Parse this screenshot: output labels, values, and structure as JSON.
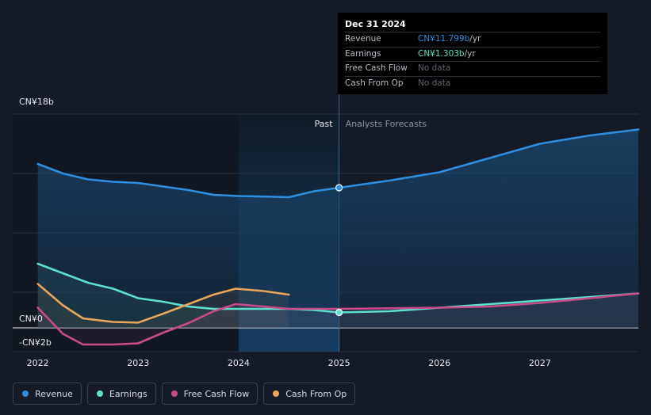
{
  "colors": {
    "revenue": "#2e8fe0",
    "earnings": "#5cdfcb",
    "free_cash_flow": "#c84c87",
    "cash_from_op": "#e8a65d",
    "background": "#141b27",
    "grid": "#2b3341"
  },
  "tooltip": {
    "date": "Dec 31 2024",
    "rows": [
      {
        "label": "Revenue",
        "value": "CN¥11.799b",
        "unit": " /yr",
        "color": "#2e8fe0"
      },
      {
        "label": "Earnings",
        "value": "CN¥1.303b",
        "unit": " /yr",
        "color": "#5cdfcb"
      },
      {
        "label": "Free Cash Flow",
        "value": "No data",
        "unit": "",
        "color": "#5e646e"
      },
      {
        "label": "Cash From Op",
        "value": "No data",
        "unit": "",
        "color": "#5e646e"
      }
    ]
  },
  "legend": [
    {
      "label": "Revenue",
      "color": "#2e8fe0"
    },
    {
      "label": "Earnings",
      "color": "#5cdfcb"
    },
    {
      "label": "Free Cash Flow",
      "color": "#c84c87"
    },
    {
      "label": "Cash From Op",
      "color": "#e8a65d"
    }
  ],
  "chart_data": {
    "type": "line",
    "title": "",
    "xlabel": "",
    "ylabel": "",
    "x_ticks": [
      "2022",
      "2023",
      "2024",
      "2025",
      "2026",
      "2027"
    ],
    "y_tick_labels": [
      "CN¥18b",
      "CN¥0",
      "-CN¥2b"
    ],
    "xlim": [
      2021.75,
      2027.98
    ],
    "ylim": [
      -2,
      18
    ],
    "past_label": "Past",
    "forecast_label": "Analysts Forecasts",
    "divider_x": 2025.0,
    "highlight_range": [
      2024.0,
      2025.0
    ],
    "series": [
      {
        "name": "Revenue",
        "key": "revenue",
        "x": [
          2022.0,
          2022.25,
          2022.5,
          2022.75,
          2023.0,
          2023.25,
          2023.5,
          2023.75,
          2024.0,
          2024.25,
          2024.5,
          2024.75,
          2025.0,
          2025.5,
          2026.0,
          2026.5,
          2027.0,
          2027.5,
          2027.98
        ],
        "values": [
          13.8,
          13.0,
          12.5,
          12.3,
          12.2,
          11.9,
          11.6,
          11.2,
          11.1,
          11.05,
          11.0,
          11.5,
          11.8,
          12.4,
          13.1,
          14.3,
          15.5,
          16.2,
          16.7
        ]
      },
      {
        "name": "Earnings",
        "key": "earnings",
        "x": [
          2022.0,
          2022.25,
          2022.5,
          2022.75,
          2023.0,
          2023.25,
          2023.5,
          2023.75,
          2024.0,
          2024.25,
          2024.5,
          2024.75,
          2025.0,
          2025.5,
          2026.0,
          2026.5,
          2027.0,
          2027.5,
          2027.98
        ],
        "values": [
          5.4,
          4.6,
          3.8,
          3.3,
          2.5,
          2.2,
          1.8,
          1.6,
          1.6,
          1.6,
          1.6,
          1.5,
          1.3,
          1.4,
          1.7,
          2.0,
          2.3,
          2.6,
          2.9
        ]
      },
      {
        "name": "Free Cash Flow",
        "key": "free_cash_flow",
        "x": [
          2022.0,
          2022.25,
          2022.45,
          2022.75,
          2023.0,
          2023.25,
          2023.5,
          2023.75,
          2023.97,
          2024.25,
          2024.5,
          2024.75,
          2025.0,
          2025.5,
          2026.0,
          2026.5,
          2027.0,
          2027.5,
          2027.98
        ],
        "values": [
          1.7,
          -0.5,
          -1.4,
          -1.4,
          -1.3,
          -0.4,
          0.4,
          1.4,
          2.0,
          1.8,
          1.6,
          1.6,
          1.6,
          1.65,
          1.7,
          1.8,
          2.1,
          2.5,
          2.9
        ]
      },
      {
        "name": "Cash From Op",
        "key": "cash_from_op",
        "x": [
          2022.0,
          2022.25,
          2022.45,
          2022.75,
          2023.0,
          2023.25,
          2023.5,
          2023.75,
          2023.97,
          2024.25,
          2024.5
        ],
        "values": [
          3.7,
          1.9,
          0.8,
          0.5,
          0.45,
          1.2,
          2.0,
          2.8,
          3.3,
          3.1,
          2.8
        ]
      }
    ]
  }
}
